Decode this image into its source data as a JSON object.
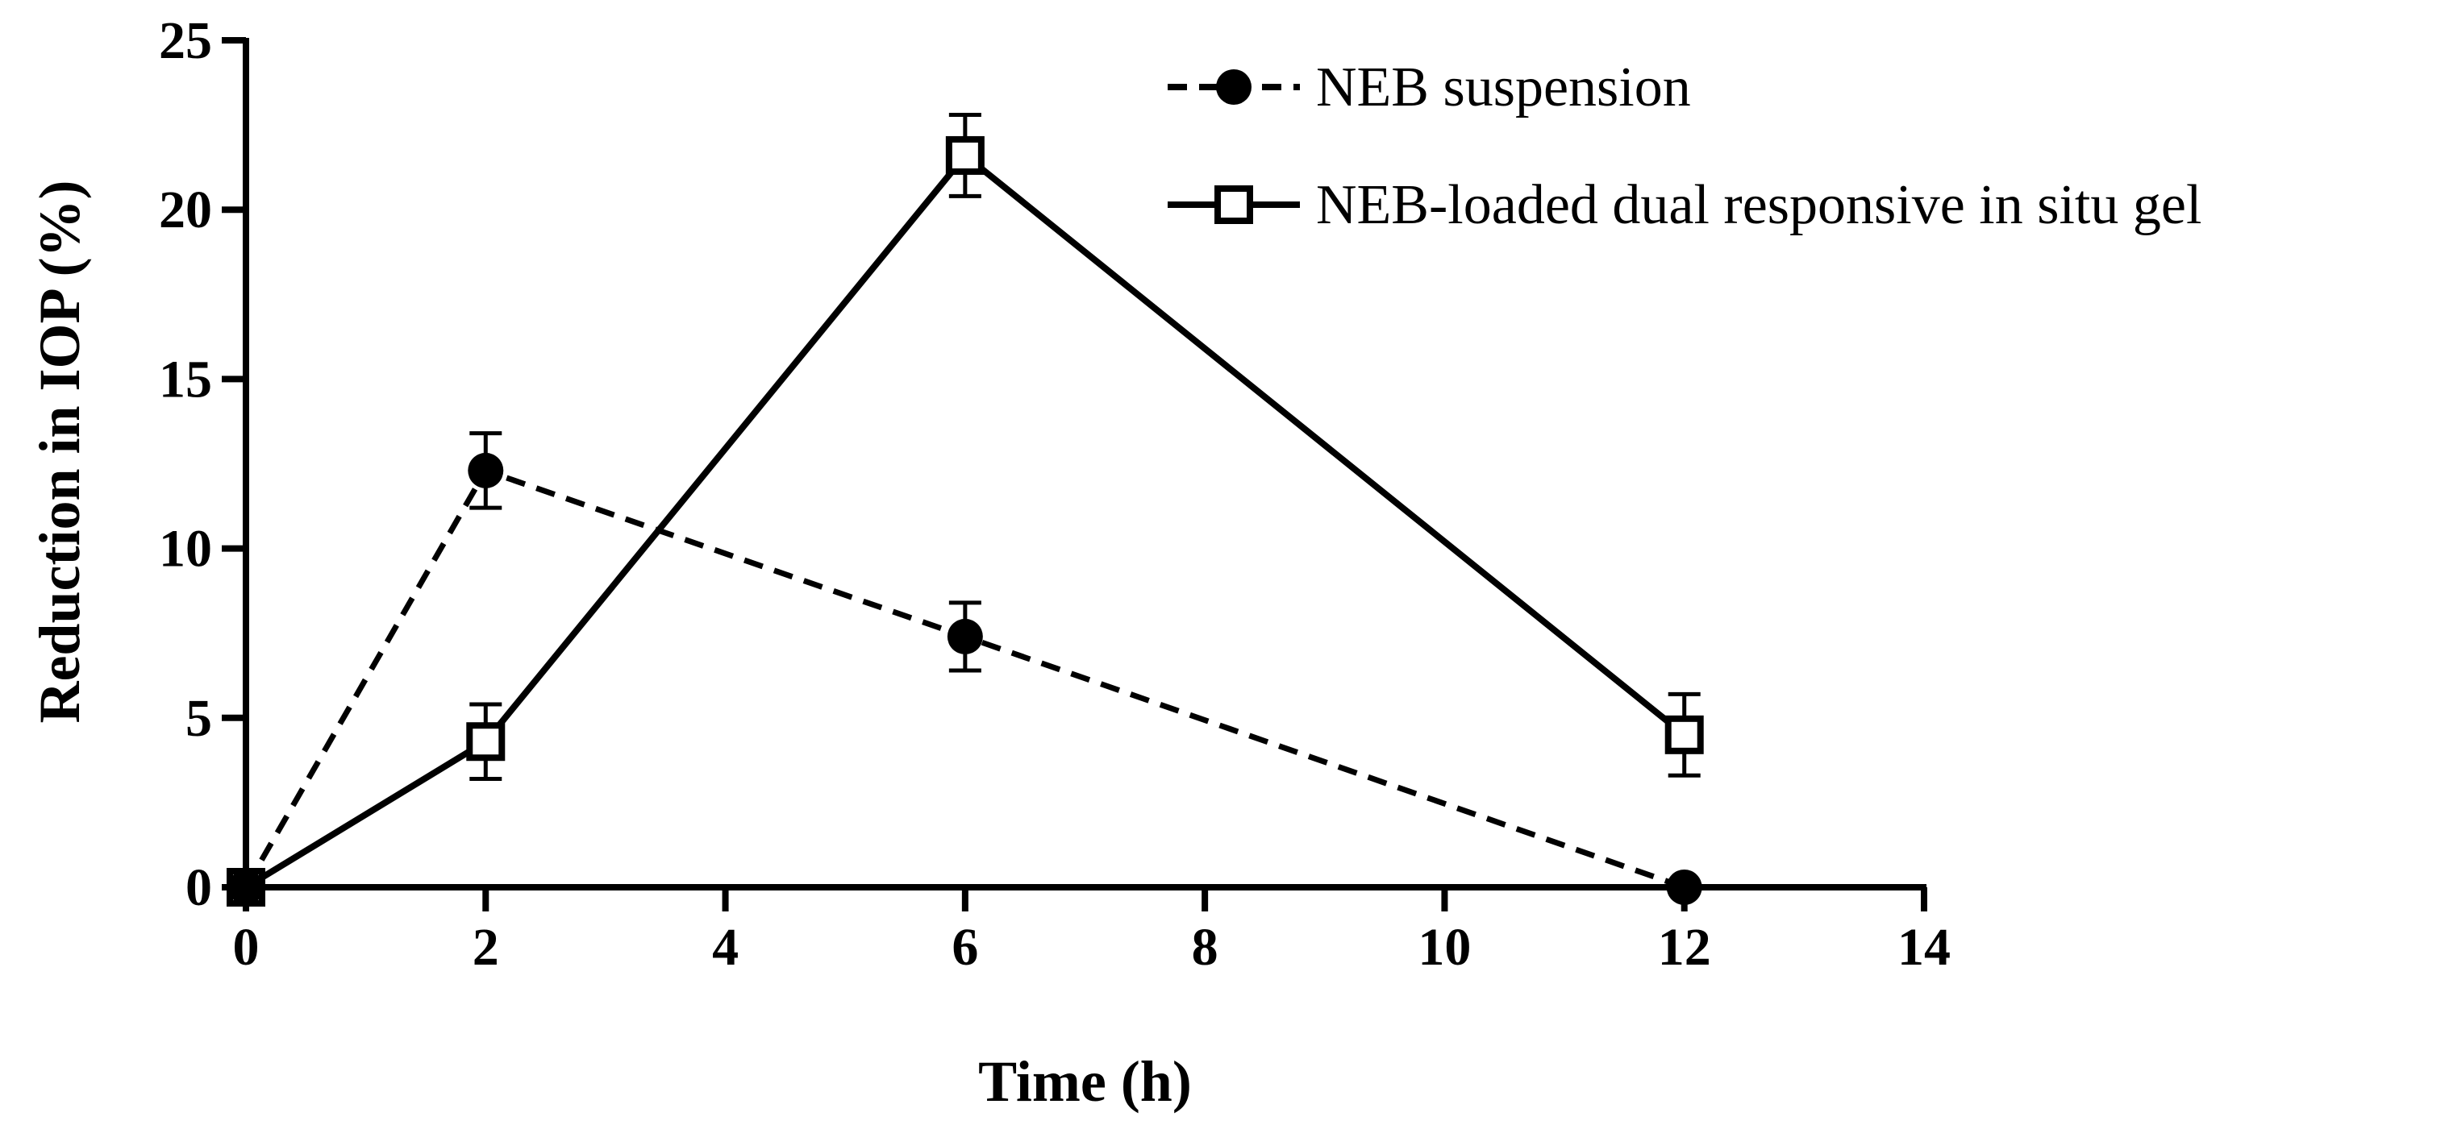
{
  "chart_data": {
    "type": "line",
    "title": "",
    "xlabel": "Time (h)",
    "ylabel": "Reduction in IOP (%)",
    "xlim": [
      0,
      14
    ],
    "ylim": [
      0,
      25
    ],
    "xticks": [
      0,
      2,
      4,
      6,
      8,
      10,
      12,
      14
    ],
    "yticks": [
      0,
      5,
      10,
      15,
      20,
      25
    ],
    "grid": false,
    "legend_position": "top-right",
    "series": [
      {
        "name": "NEB suspension",
        "line_style": "dashed",
        "marker": "filled-circle",
        "color": "#000000",
        "x": [
          0,
          2,
          6,
          12
        ],
        "y": [
          0,
          12.3,
          7.4,
          0
        ],
        "error": [
          0,
          1.1,
          1.0,
          0
        ]
      },
      {
        "name": "NEB-loaded dual responsive in situ gel",
        "line_style": "solid",
        "marker": "open-square",
        "color": "#000000",
        "x": [
          0,
          2,
          6,
          12
        ],
        "y": [
          0,
          4.3,
          21.6,
          4.5
        ],
        "error": [
          0,
          1.1,
          1.2,
          1.2
        ]
      }
    ]
  }
}
